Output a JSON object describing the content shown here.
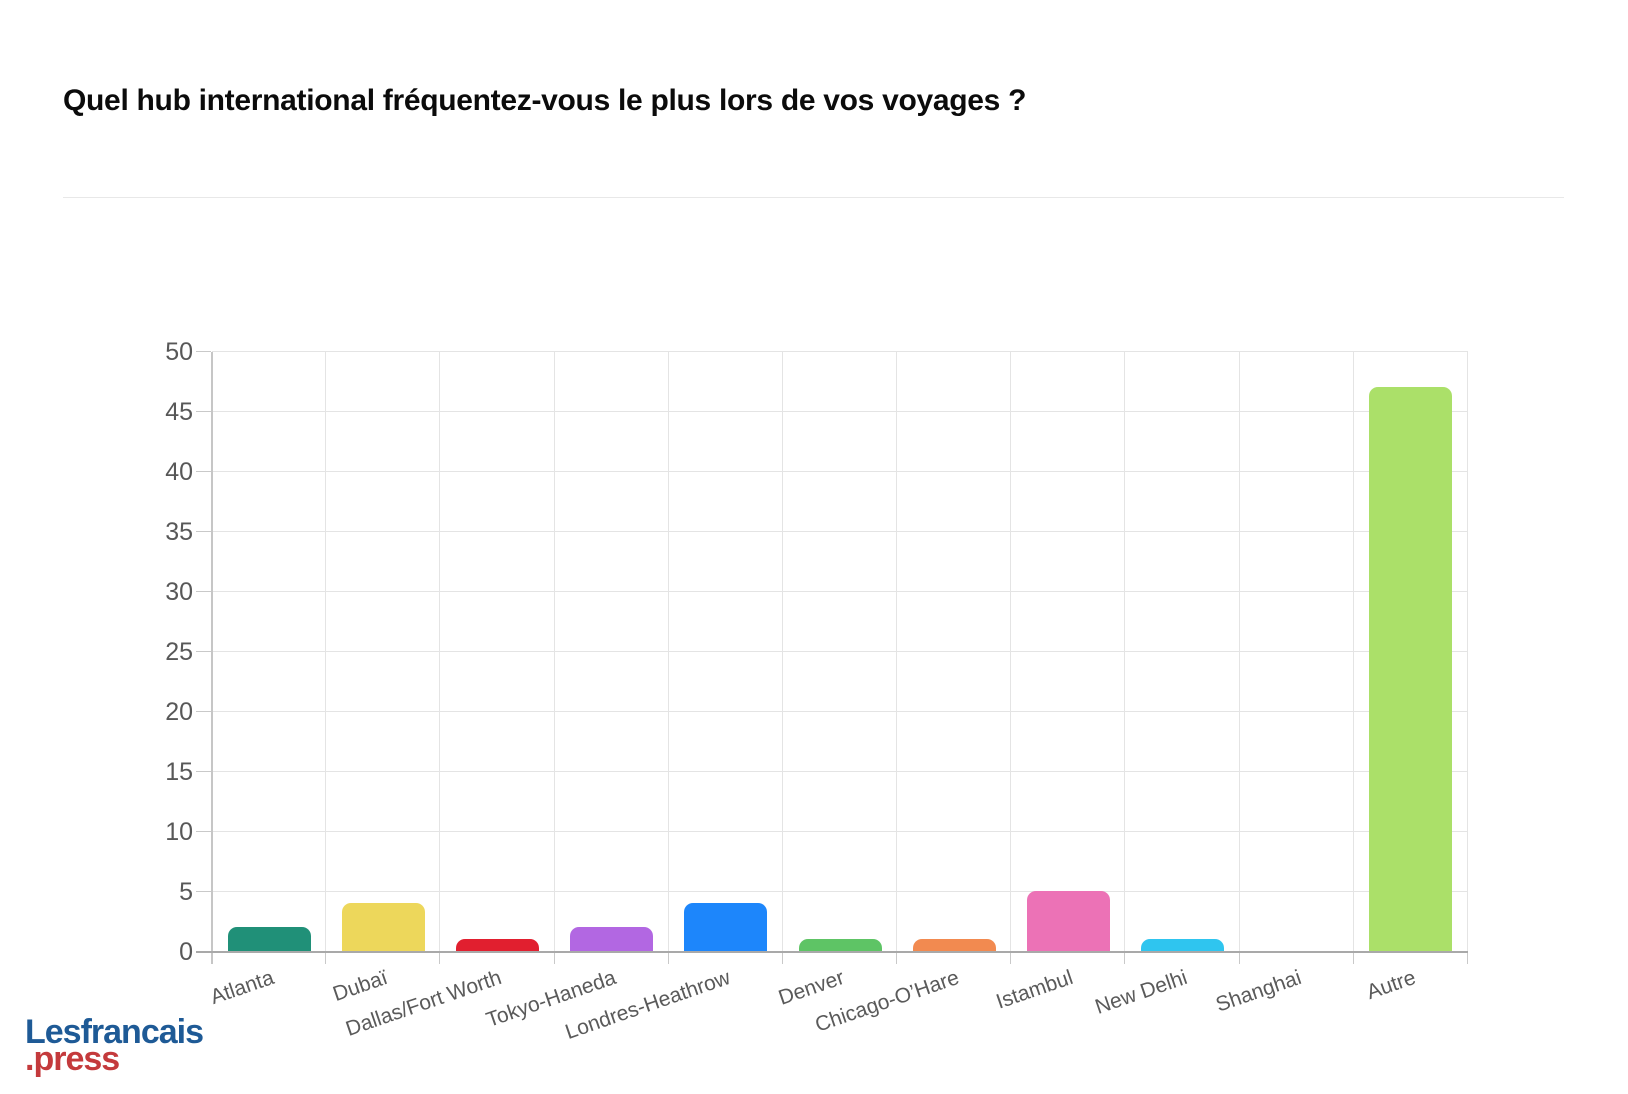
{
  "title": "Quel hub international fréquentez-vous le plus lors de vos voyages ?",
  "logo": {
    "line1": "Lesfrancais",
    "line2": ".press",
    "line1_color": "#1e5a96",
    "line2_color": "#c43a3c"
  },
  "chart_data": {
    "type": "bar",
    "title": "Quel hub international fréquentez-vous le plus lors de vos voyages ?",
    "categories": [
      "Atlanta",
      "Dubaï",
      "Dallas/Fort Worth",
      "Tokyo-Haneda",
      "Londres-Heathrow",
      "Denver",
      "Chicago-O’Hare",
      "Istambul",
      "New Delhi",
      "Shanghai",
      "Autre"
    ],
    "values": [
      2,
      4,
      1,
      2,
      4,
      1,
      1,
      5,
      1,
      0,
      47
    ],
    "bar_colors": [
      "#209078",
      "#edd75b",
      "#e11f2f",
      "#b267e2",
      "#1d86fb",
      "#5ec465",
      "#f28a50",
      "#ec72b6",
      "#2fc5ef",
      "#bfbfbf",
      "#abe069"
    ],
    "xlabel": "",
    "ylabel": "",
    "ylim": [
      0,
      50
    ],
    "ytick_step": 5,
    "yticks": [
      0,
      5,
      10,
      15,
      20,
      25,
      30,
      35,
      40,
      45,
      50
    ],
    "grid": true,
    "legend": "none",
    "gridline_color": "#e4e4e4",
    "axis_color": "#a9a9a9",
    "tick_label_color": "#585858"
  }
}
